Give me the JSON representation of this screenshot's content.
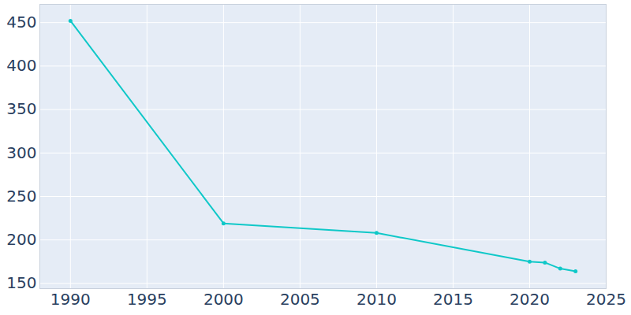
{
  "chart_data": {
    "type": "line",
    "x": [
      1990,
      2000,
      2010,
      2020,
      2021,
      2022,
      2023
    ],
    "values": [
      452,
      219,
      208,
      175,
      174,
      167,
      164
    ],
    "color": "#0fc8c8",
    "marker": "circle",
    "xlim": [
      1988,
      2025
    ],
    "xticks": [
      1990,
      1995,
      2000,
      2005,
      2010,
      2015,
      2020,
      2025
    ],
    "ylim": [
      144,
      471
    ],
    "yticks": [
      150,
      200,
      250,
      300,
      350,
      400,
      450
    ],
    "grid": true
  }
}
